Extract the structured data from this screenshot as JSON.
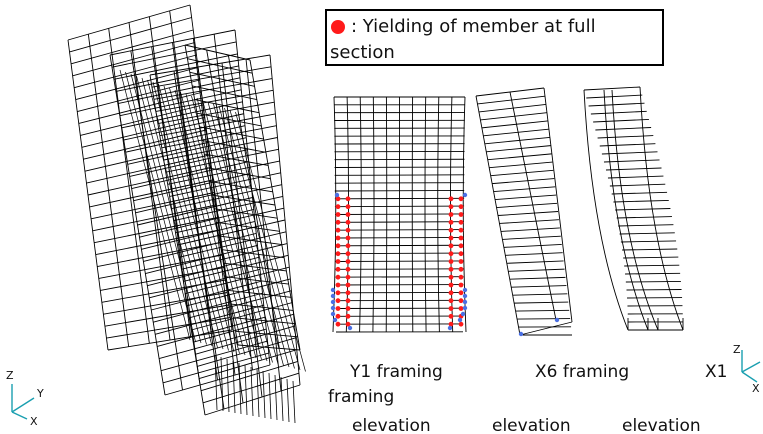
{
  "legend": {
    "marker_color": "#ff1a1a",
    "text_line1": ": Yielding of member at full",
    "text_line2": "section"
  },
  "labels": {
    "y1_framing": "Y1   framing",
    "x6_framing": "X6   framing",
    "x1_prefix": "X1",
    "framing_wrap": "framing",
    "elevation": "elevation"
  },
  "axes_left": {
    "z": "Z",
    "y": "Y",
    "x": "X"
  },
  "axes_right": {
    "z": "Z",
    "x": "X"
  },
  "colors": {
    "lines": "#000000",
    "yield": "#ff1a1a",
    "hinge": "#4a6fe3",
    "axis_glyph": "#1a9fb0"
  }
}
